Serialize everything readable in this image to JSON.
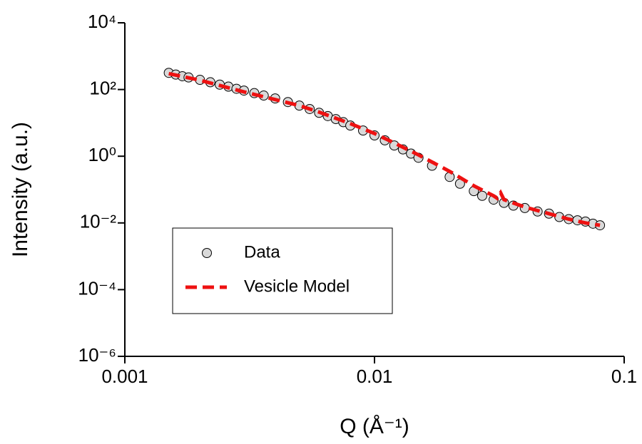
{
  "chart_data": {
    "type": "scatter-line",
    "x_label": "Q (Å⁻¹)",
    "y_label": "Intensity (a.u.)",
    "x_scale": "log",
    "y_scale": "log",
    "xlim": [
      0.001,
      0.1
    ],
    "ylim": [
      1e-06,
      10000
    ],
    "xticks": [
      0.001,
      0.01,
      0.1
    ],
    "yticks": [
      {
        "value": 1e-06,
        "label": "10⁻⁶"
      },
      {
        "value": 0.0001,
        "label": "10⁻⁴"
      },
      {
        "value": 0.01,
        "label": "10⁻²"
      },
      {
        "value": 1,
        "label": "10⁰"
      },
      {
        "value": 100,
        "label": "10²"
      },
      {
        "value": 10000,
        "label": "10⁴"
      }
    ],
    "legend": "lower left",
    "series": [
      {
        "name": "Data",
        "kind": "scatter",
        "color": "#d9d9d9",
        "x": [
          0.0015,
          0.0016,
          0.0017,
          0.0018,
          0.002,
          0.0022,
          0.0024,
          0.0026,
          0.0028,
          0.003,
          0.0033,
          0.0036,
          0.004,
          0.0045,
          0.005,
          0.0055,
          0.006,
          0.0065,
          0.007,
          0.0075,
          0.008,
          0.009,
          0.01,
          0.011,
          0.012,
          0.013,
          0.014,
          0.015,
          0.017,
          0.02,
          0.022,
          0.025,
          0.027,
          0.03,
          0.033,
          0.036,
          0.04,
          0.045,
          0.05,
          0.055,
          0.06,
          0.065,
          0.07,
          0.075,
          0.08
        ],
        "values": [
          316,
          280,
          250,
          230,
          195,
          165,
          140,
          122,
          105,
          93,
          78,
          66,
          54,
          42,
          33,
          26,
          20,
          16,
          13,
          10.5,
          8.3,
          5.9,
          4.2,
          3.0,
          2.1,
          1.6,
          1.2,
          0.9,
          0.52,
          0.24,
          0.15,
          0.09,
          0.065,
          0.05,
          0.04,
          0.033,
          0.028,
          0.022,
          0.019,
          0.015,
          0.013,
          0.012,
          0.011,
          0.0095,
          0.0085
        ]
      },
      {
        "name": "Vesicle Model",
        "kind": "line",
        "color": "#ee1111",
        "x": [
          0.0015,
          0.002,
          0.003,
          0.004,
          0.005,
          0.006,
          0.008,
          0.01,
          0.012,
          0.015,
          0.02,
          0.025,
          0.03,
          0.031,
          0.032,
          0.033,
          0.04,
          0.05,
          0.06,
          0.07,
          0.08
        ],
        "values": [
          300,
          190,
          85,
          50,
          33,
          21,
          9.5,
          4.8,
          2.5,
          1.1,
          0.35,
          0.13,
          0.065,
          0.055,
          0.08,
          0.05,
          0.03,
          0.019,
          0.013,
          0.01,
          0.0085
        ]
      }
    ]
  }
}
